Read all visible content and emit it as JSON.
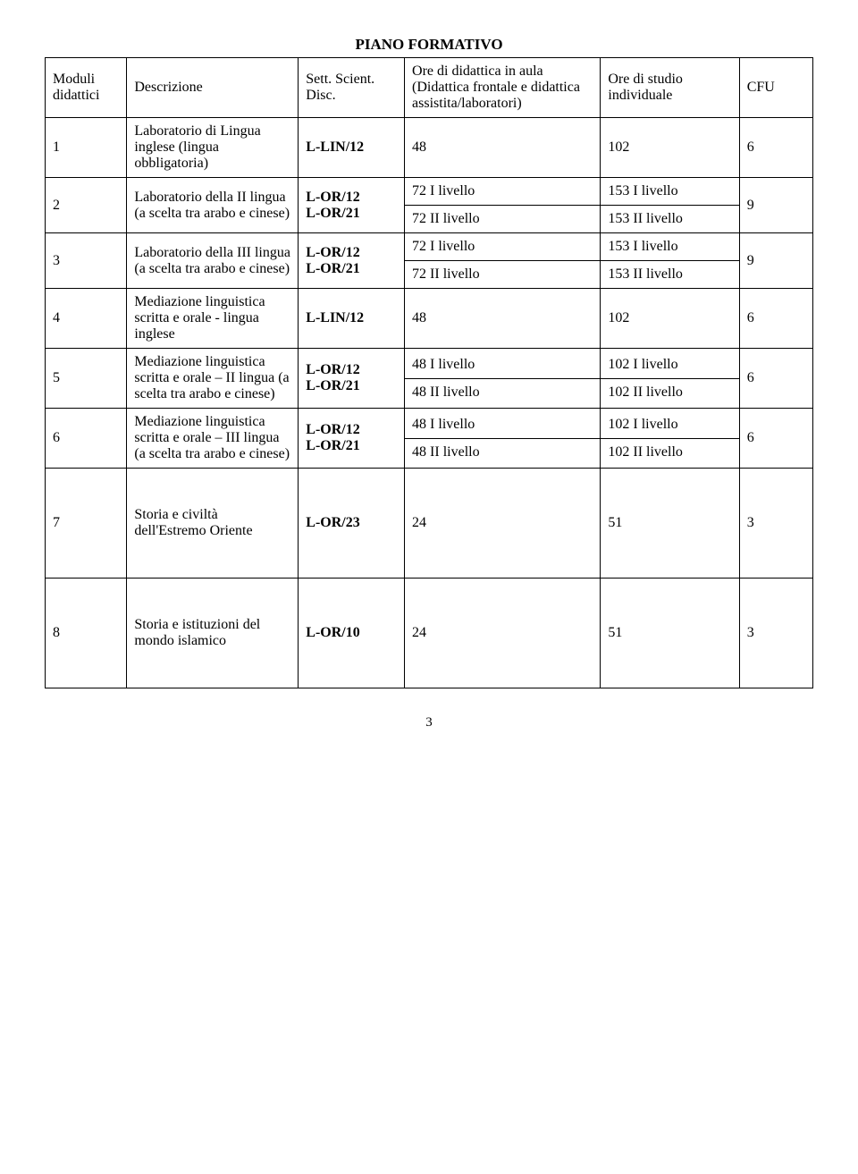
{
  "title": "PIANO FORMATIVO",
  "headers": {
    "moduli": "Moduli didattici",
    "descrizione": "Descrizione",
    "sett": "Sett. Scient. Disc.",
    "ore_aula": "Ore di didattica in aula\n(Didattica frontale e didattica assistita/laboratori)",
    "ore_studio": "Ore di studio individuale",
    "cfu": "CFU"
  },
  "rows": [
    {
      "mod": "1",
      "desc": "Laboratorio di Lingua inglese (lingua obbligatoria)",
      "sett": "L-LIN/12",
      "ore_aula": "48",
      "ore_studio": "102",
      "cfu": "6",
      "split": false
    },
    {
      "mod": "2",
      "desc": "Laboratorio della II lingua (a scelta tra arabo e cinese)",
      "sett": "L-OR/12\nL-OR/21",
      "ore_aula_a": "72 I livello",
      "ore_aula_b": "72 II livello",
      "ore_studio_a": "153 I livello",
      "ore_studio_b": "153 II livello",
      "cfu": "9",
      "split": true
    },
    {
      "mod": "3",
      "desc": "Laboratorio della III lingua (a scelta tra arabo e cinese)",
      "sett": "L-OR/12\nL-OR/21",
      "ore_aula_a": "72 I livello",
      "ore_aula_b": "72 II livello",
      "ore_studio_a": "153 I livello",
      "ore_studio_b": "153 II livello",
      "cfu": "9",
      "split": true
    },
    {
      "mod": "4",
      "desc": "Mediazione linguistica scritta e orale - lingua inglese",
      "sett": "L-LIN/12",
      "ore_aula": "48",
      "ore_studio": "102",
      "cfu": "6",
      "split": false
    },
    {
      "mod": "5",
      "desc": "Mediazione linguistica scritta e orale – II lingua (a scelta tra arabo e cinese)",
      "sett": "L-OR/12\nL-OR/21",
      "ore_aula_a": "48 I livello",
      "ore_aula_b": "48 II livello",
      "ore_studio_a": "102 I livello",
      "ore_studio_b": "102 II livello",
      "cfu": "6",
      "split": true
    },
    {
      "mod": "6",
      "desc": "Mediazione linguistica scritta e orale – III lingua (a scelta tra arabo e cinese)",
      "sett": "L-OR/12\nL-OR/21",
      "ore_aula_a": "48 I livello",
      "ore_aula_b": "48 II livello",
      "ore_studio_a": "102 I livello",
      "ore_studio_b": "102 II livello",
      "cfu": "6",
      "split": true
    },
    {
      "mod": "7",
      "desc": "Storia e civiltà dell'Estremo Oriente",
      "sett": "L-OR/23",
      "ore_aula": "24",
      "ore_studio": "51",
      "cfu": "3",
      "split": false,
      "tall": true
    },
    {
      "mod": "8",
      "desc": "Storia e istituzioni del mondo islamico",
      "sett": "L-OR/10",
      "ore_aula": "24",
      "ore_studio": "51",
      "cfu": "3",
      "split": false,
      "tall": true
    }
  ],
  "page_number": "3",
  "style": {
    "font_family": "Times New Roman",
    "title_fontsize": 17,
    "body_fontsize": 16,
    "border_color": "#000000",
    "background_color": "#ffffff",
    "text_color": "#000000"
  }
}
